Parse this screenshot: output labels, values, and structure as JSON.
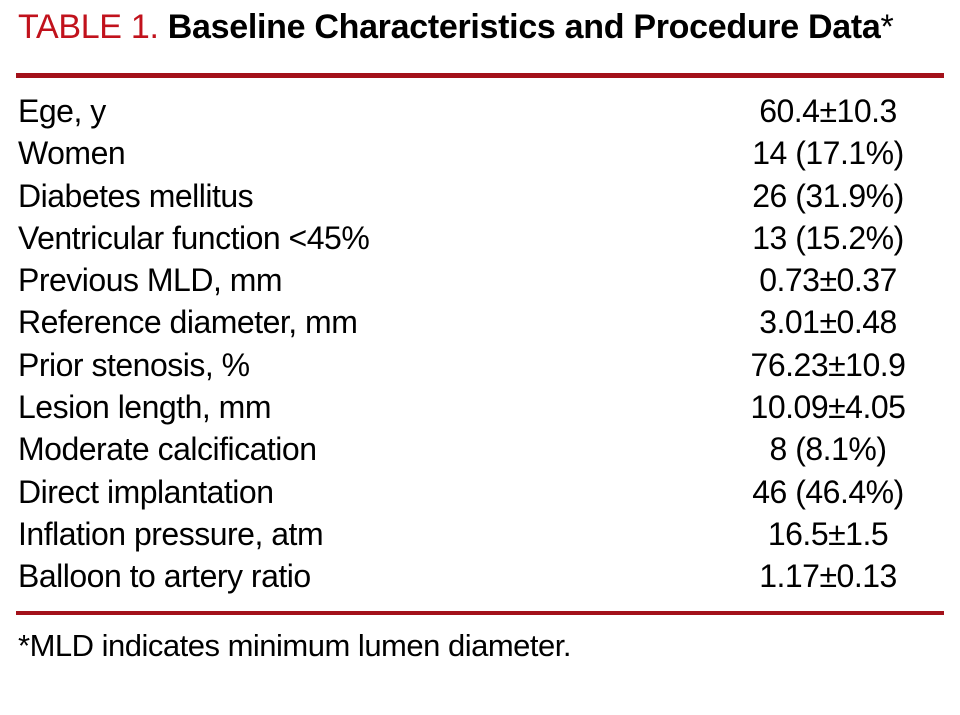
{
  "table": {
    "label": "TABLE 1.",
    "title": "Baseline Characteristics and Procedure Data",
    "title_asterisk": "*",
    "rows": [
      {
        "label": "Ege, y",
        "value": "60.4±10.3"
      },
      {
        "label": "Women",
        "value": "14 (17.1%)"
      },
      {
        "label": "Diabetes mellitus",
        "value": "26 (31.9%)"
      },
      {
        "label": "Ventricular function <45%",
        "value": "13 (15.2%)"
      },
      {
        "label": "Previous MLD, mm",
        "value": "0.73±0.37"
      },
      {
        "label": "Reference diameter, mm",
        "value": "3.01±0.48"
      },
      {
        "label": "Prior stenosis, %",
        "value": "76.23±10.9"
      },
      {
        "label": "Lesion length, mm",
        "value": "10.09±4.05"
      },
      {
        "label": "Moderate calcification",
        "value": "8 (8.1%)"
      },
      {
        "label": "Direct implantation",
        "value": "46 (46.4%)"
      },
      {
        "label": "Inflation pressure, atm",
        "value": "16.5±1.5"
      },
      {
        "label": "Balloon to artery ratio",
        "value": "1.17±0.13"
      }
    ],
    "footnote": "*MLD indicates minimum lumen diameter."
  },
  "colors": {
    "accent_red": "#c1121c",
    "rule_red": "#a3111a",
    "text": "#000000",
    "background": "#ffffff"
  }
}
